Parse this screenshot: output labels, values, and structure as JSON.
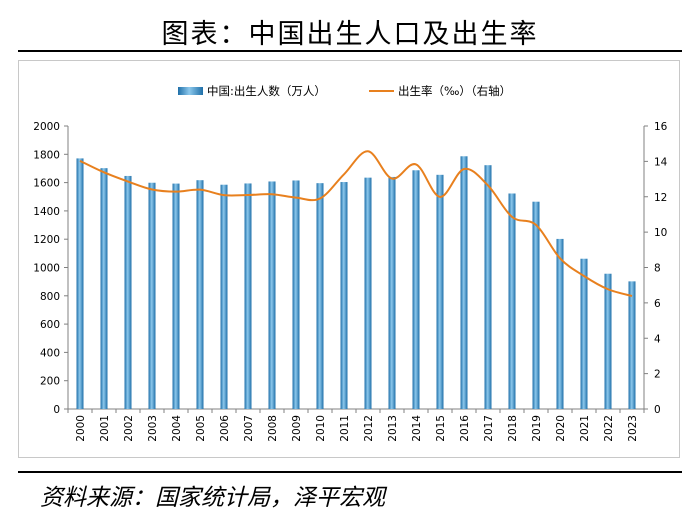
{
  "header": {
    "title": "图表：中国出生人口及出生率"
  },
  "footer": {
    "source": "资料来源：国家统计局，泽平宏观"
  },
  "chart_data": {
    "type": "bar",
    "title": "",
    "xlabel": "",
    "ylabel": "",
    "categories": [
      "2000",
      "2001",
      "2002",
      "2003",
      "2004",
      "2005",
      "2006",
      "2007",
      "2008",
      "2009",
      "2010",
      "2011",
      "2012",
      "2013",
      "2014",
      "2015",
      "2016",
      "2017",
      "2018",
      "2019",
      "2020",
      "2021",
      "2022",
      "2023"
    ],
    "series": [
      {
        "name": "中国:出生人数（万人）",
        "type": "bar",
        "axis": "left",
        "color": "#3b8cc4",
        "values": [
          1771,
          1702,
          1647,
          1599,
          1593,
          1617,
          1585,
          1594,
          1608,
          1615,
          1596,
          1604,
          1635,
          1640,
          1687,
          1655,
          1786,
          1723,
          1523,
          1465,
          1202,
          1062,
          956,
          902
        ]
      },
      {
        "name": "出生率（‰）（右轴）",
        "type": "line",
        "axis": "right",
        "color": "#e8801e",
        "values": [
          14.03,
          13.38,
          12.86,
          12.41,
          12.29,
          12.4,
          12.09,
          12.1,
          12.14,
          11.95,
          11.9,
          13.27,
          14.57,
          13.03,
          13.83,
          11.99,
          13.57,
          12.64,
          10.86,
          10.41,
          8.52,
          7.52,
          6.77,
          6.39
        ]
      }
    ],
    "ylim": [
      0,
      2000
    ],
    "yticks": [
      0,
      200,
      400,
      600,
      800,
      1000,
      1200,
      1400,
      1600,
      1800,
      2000
    ],
    "y2lim": [
      0,
      16
    ],
    "y2ticks": [
      0,
      2,
      4,
      6,
      8,
      10,
      12,
      14,
      16
    ],
    "legend_position": "top-center",
    "grid": false
  }
}
